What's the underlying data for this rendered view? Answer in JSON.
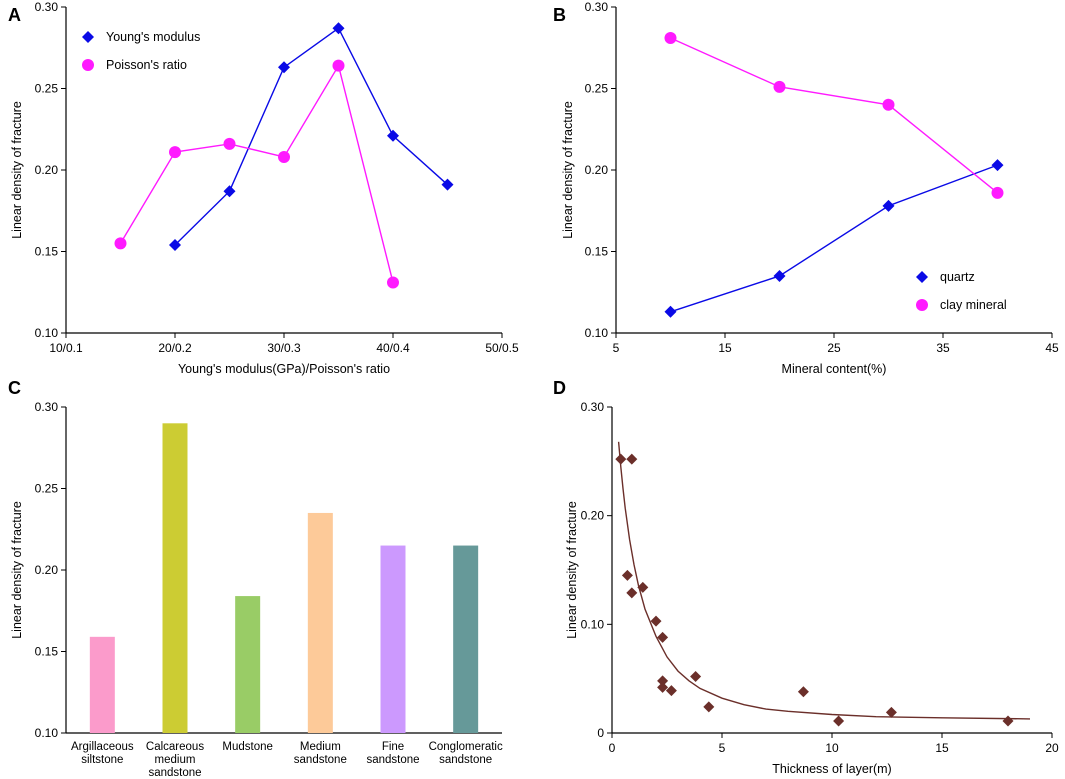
{
  "chart_data": [
    {
      "id": "A",
      "type": "line",
      "panel_label": "A",
      "xlabel": "Young's modulus(GPa)/Poisson's ratio",
      "ylabel": "Linear density of fracture",
      "xlim": [
        10,
        50
      ],
      "ylim": [
        0.1,
        0.3
      ],
      "xticks": [
        10,
        20,
        30,
        40,
        50
      ],
      "xtick_labels": [
        "10/0.1",
        "20/0.2",
        "30/0.3",
        "40/0.4",
        "50/0.5"
      ],
      "yticks": [
        0.1,
        0.15,
        0.2,
        0.25,
        0.3
      ],
      "ytick_labels": [
        "0.10",
        "0.15",
        "0.20",
        "0.25",
        "0.30"
      ],
      "legend_position": "top-left",
      "series": [
        {
          "name": "Young's modulus",
          "marker": "diamond",
          "color": "#0a0ae6",
          "x": [
            20,
            25,
            30,
            35,
            40,
            45
          ],
          "y": [
            0.154,
            0.187,
            0.263,
            0.287,
            0.221,
            0.191
          ]
        },
        {
          "name": "Poisson's ratio",
          "marker": "circle",
          "color": "#ff1aff",
          "x": [
            15,
            20,
            25,
            30,
            35,
            40
          ],
          "y": [
            0.155,
            0.211,
            0.216,
            0.208,
            0.264,
            0.131
          ]
        }
      ]
    },
    {
      "id": "B",
      "type": "line",
      "panel_label": "B",
      "xlabel": "Mineral content(%)",
      "ylabel": "Linear density of fracture",
      "xlim": [
        5,
        45
      ],
      "ylim": [
        0.1,
        0.3
      ],
      "xticks": [
        5,
        15,
        25,
        35,
        45
      ],
      "xtick_labels": [
        "5",
        "15",
        "25",
        "35",
        "45"
      ],
      "yticks": [
        0.1,
        0.15,
        0.2,
        0.25,
        0.3
      ],
      "ytick_labels": [
        "0.10",
        "0.15",
        "0.20",
        "0.25",
        "0.30"
      ],
      "legend_position": "bottom-right",
      "series": [
        {
          "name": "quartz",
          "marker": "diamond",
          "color": "#0a0ae6",
          "x": [
            10,
            20,
            30,
            40
          ],
          "y": [
            0.113,
            0.135,
            0.178,
            0.203
          ]
        },
        {
          "name": "clay mineral",
          "marker": "circle",
          "color": "#ff1aff",
          "x": [
            10,
            20,
            30,
            40
          ],
          "y": [
            0.281,
            0.251,
            0.24,
            0.186
          ]
        }
      ]
    },
    {
      "id": "C",
      "type": "bar",
      "panel_label": "C",
      "xlabel": "",
      "ylabel": "Linear density of fracture",
      "ylim": [
        0.1,
        0.3
      ],
      "yticks": [
        0.1,
        0.15,
        0.2,
        0.25,
        0.3
      ],
      "ytick_labels": [
        "0.10",
        "0.15",
        "0.20",
        "0.25",
        "0.30"
      ],
      "categories": [
        [
          "Argillaceous",
          "siltstone"
        ],
        [
          "Calcareous",
          "medium",
          "sandstone"
        ],
        [
          "Mudstone"
        ],
        [
          "Medium",
          "sandstone"
        ],
        [
          "Fine",
          "sandstone"
        ],
        [
          "Conglomeratic",
          "sandstone"
        ]
      ],
      "values": [
        0.159,
        0.29,
        0.184,
        0.235,
        0.215,
        0.215
      ],
      "colors": [
        "#fb9bcb",
        "#cccc33",
        "#99cc66",
        "#fdca99",
        "#cc99fe",
        "#669999"
      ]
    },
    {
      "id": "D",
      "type": "scatter",
      "panel_label": "D",
      "xlabel": "Thickness of layer(m)",
      "ylabel": "Linear density of fracture",
      "xlim": [
        0,
        20
      ],
      "ylim": [
        0,
        0.3
      ],
      "xticks": [
        0,
        5,
        10,
        15,
        20
      ],
      "xtick_labels": [
        "0",
        "5",
        "10",
        "15",
        "20"
      ],
      "yticks": [
        0,
        0.1,
        0.2,
        0.3
      ],
      "ytick_labels": [
        "0",
        "0.10",
        "0.20",
        "0.30"
      ],
      "marker_color": "#6b2f2a",
      "curve_color": "#6b2f2a",
      "points": {
        "x": [
          0.4,
          0.9,
          0.7,
          0.9,
          1.4,
          2.0,
          2.3,
          2.3,
          2.3,
          2.7,
          3.8,
          4.4,
          8.7,
          10.3,
          12.7,
          18.0
        ],
        "y": [
          0.252,
          0.252,
          0.145,
          0.129,
          0.134,
          0.103,
          0.088,
          0.048,
          0.042,
          0.039,
          0.052,
          0.024,
          0.038,
          0.011,
          0.019,
          0.011
        ]
      },
      "fit_curve": {
        "x": [
          0.3,
          0.4,
          0.5,
          0.6,
          0.8,
          1.0,
          1.2,
          1.5,
          2.0,
          2.5,
          3.0,
          3.5,
          4.0,
          5.0,
          6.0,
          7.0,
          8.0,
          10.0,
          12.0,
          15.0,
          19.0
        ],
        "y": [
          0.268,
          0.245,
          0.225,
          0.207,
          0.178,
          0.155,
          0.136,
          0.114,
          0.089,
          0.07,
          0.057,
          0.048,
          0.041,
          0.032,
          0.026,
          0.022,
          0.02,
          0.017,
          0.015,
          0.014,
          0.013
        ]
      }
    }
  ]
}
